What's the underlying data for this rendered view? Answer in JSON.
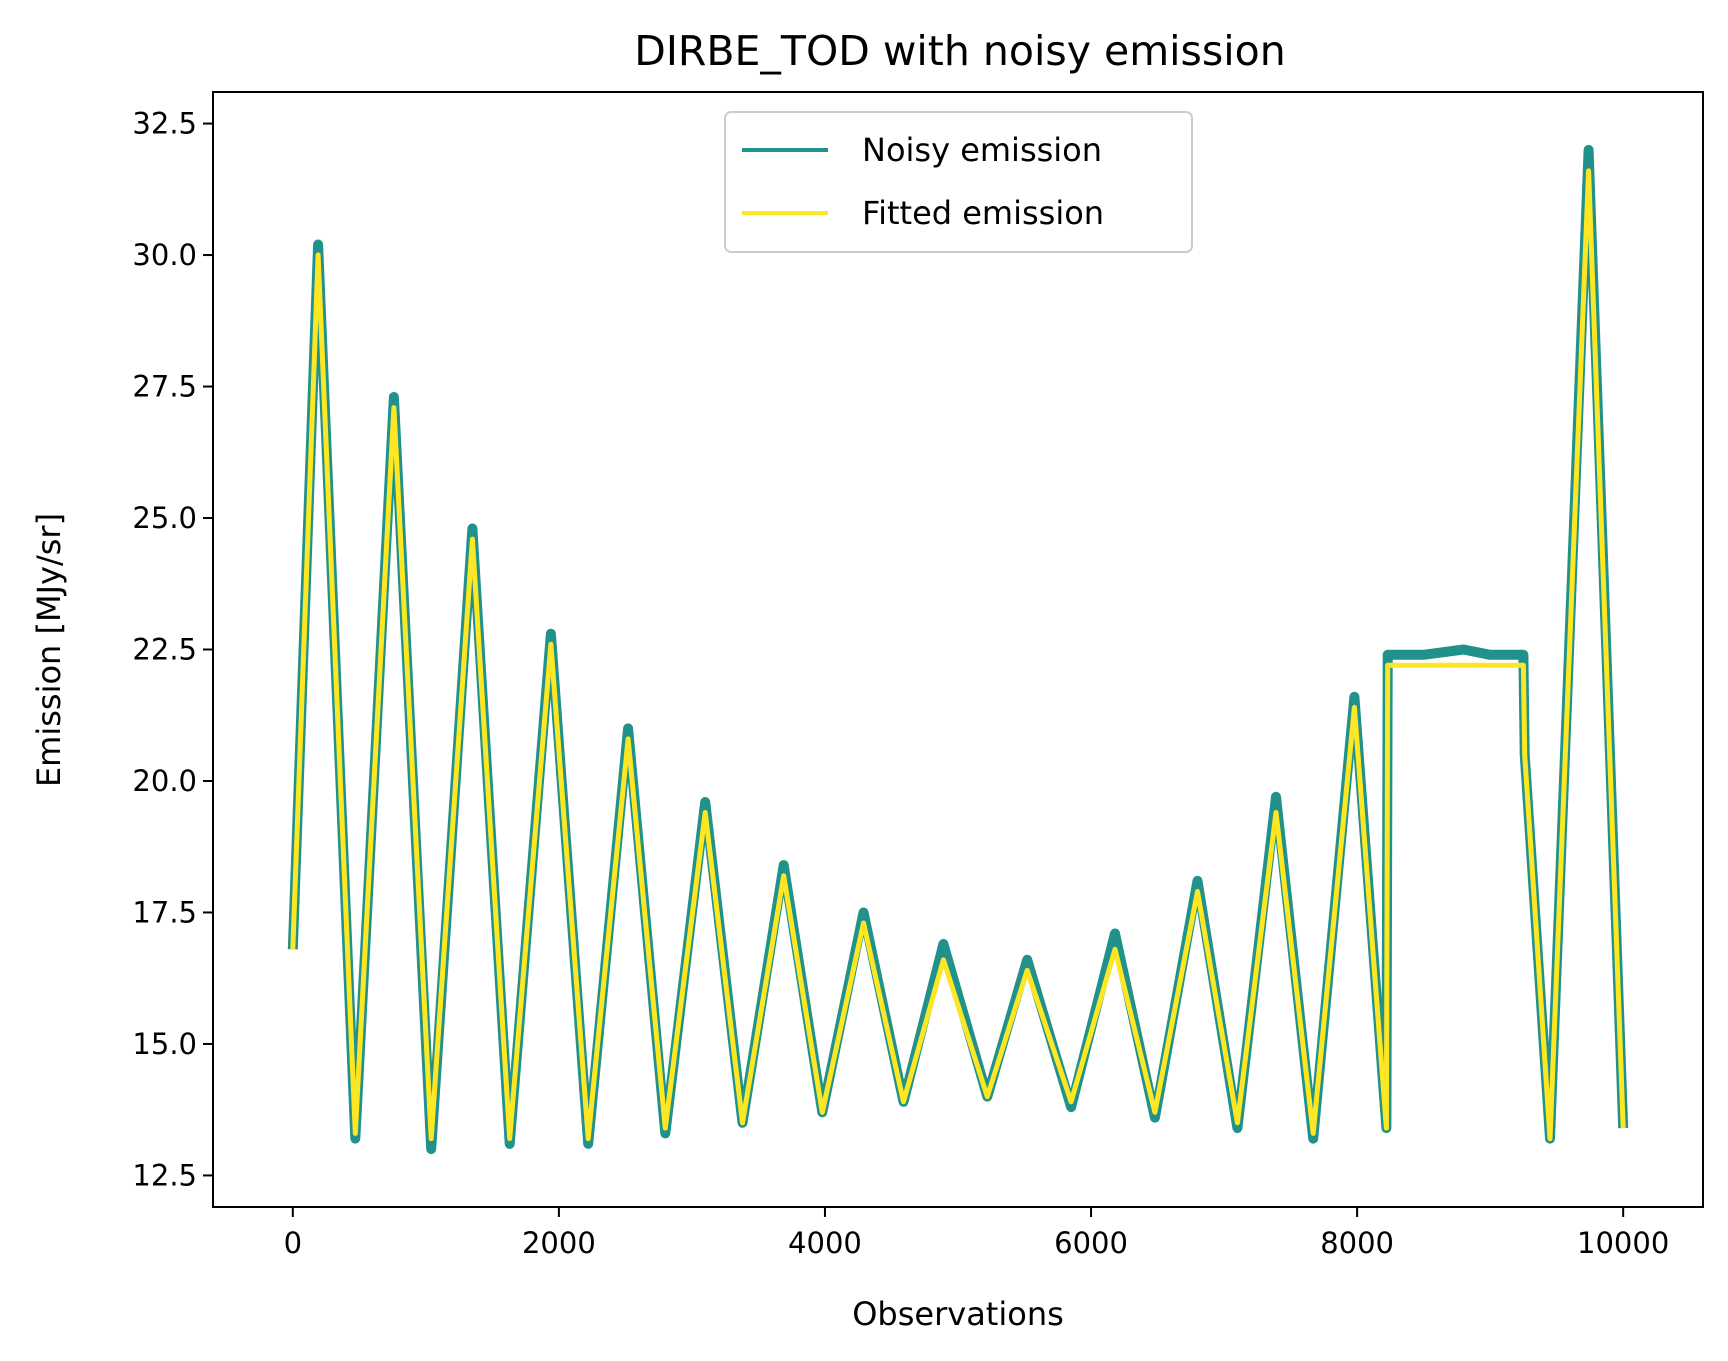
{
  "chart_data": {
    "type": "line",
    "title": "DIRBE_TOD with noisy emission",
    "xlabel": "Observations",
    "ylabel": "Emission [MJy/sr]",
    "xlim": [
      -600,
      10600
    ],
    "ylim": [
      11.9,
      33.1
    ],
    "xticks": [
      0,
      2000,
      4000,
      6000,
      8000,
      10000
    ],
    "xtick_labels": [
      "0",
      "2000",
      "4000",
      "6000",
      "8000",
      "10000"
    ],
    "yticks": [
      12.5,
      15.0,
      17.5,
      20.0,
      22.5,
      25.0,
      27.5,
      30.0,
      32.5
    ],
    "ytick_labels": [
      "12.5",
      "15.0",
      "17.5",
      "20.0",
      "22.5",
      "25.0",
      "27.5",
      "30.0",
      "32.5"
    ],
    "grid": false,
    "legend_position": "upper-center",
    "series": [
      {
        "name": "Noisy emission",
        "color": "#21918c",
        "x": [
          0,
          190,
          470,
          760,
          1040,
          1350,
          1630,
          1940,
          2220,
          2520,
          2800,
          3100,
          3380,
          3690,
          3980,
          4290,
          4590,
          4890,
          5220,
          5520,
          5850,
          6180,
          6480,
          6800,
          7100,
          7390,
          7670,
          7980,
          8220,
          8230,
          8500,
          8800,
          9000,
          9250,
          9260,
          9450,
          9740,
          10000
        ],
        "y": [
          16.8,
          30.2,
          13.2,
          27.3,
          13.0,
          24.8,
          13.1,
          22.8,
          13.1,
          21.0,
          13.3,
          19.6,
          13.5,
          18.4,
          13.7,
          17.5,
          13.9,
          16.9,
          14.0,
          16.6,
          13.8,
          17.1,
          13.6,
          18.1,
          13.4,
          19.7,
          13.2,
          21.6,
          13.4,
          22.4,
          22.4,
          22.5,
          22.4,
          22.4,
          20.5,
          13.2,
          32.0,
          13.4
        ]
      },
      {
        "name": "Fitted emission",
        "color": "#fde725",
        "x": [
          0,
          190,
          470,
          760,
          1040,
          1350,
          1630,
          1940,
          2220,
          2520,
          2800,
          3100,
          3380,
          3690,
          3980,
          4290,
          4590,
          4890,
          5220,
          5520,
          5850,
          6180,
          6480,
          6800,
          7100,
          7390,
          7670,
          7980,
          8220,
          8230,
          8500,
          8800,
          9000,
          9250,
          9260,
          9450,
          9740,
          10000
        ],
        "y": [
          16.8,
          30.0,
          13.3,
          27.1,
          13.2,
          24.6,
          13.2,
          22.6,
          13.2,
          20.8,
          13.4,
          19.4,
          13.5,
          18.2,
          13.7,
          17.3,
          13.9,
          16.6,
          14.0,
          16.4,
          13.9,
          16.8,
          13.7,
          17.9,
          13.5,
          19.4,
          13.3,
          21.4,
          13.4,
          22.2,
          22.2,
          22.2,
          22.2,
          22.2,
          20.5,
          13.2,
          31.6,
          13.4
        ]
      }
    ]
  }
}
